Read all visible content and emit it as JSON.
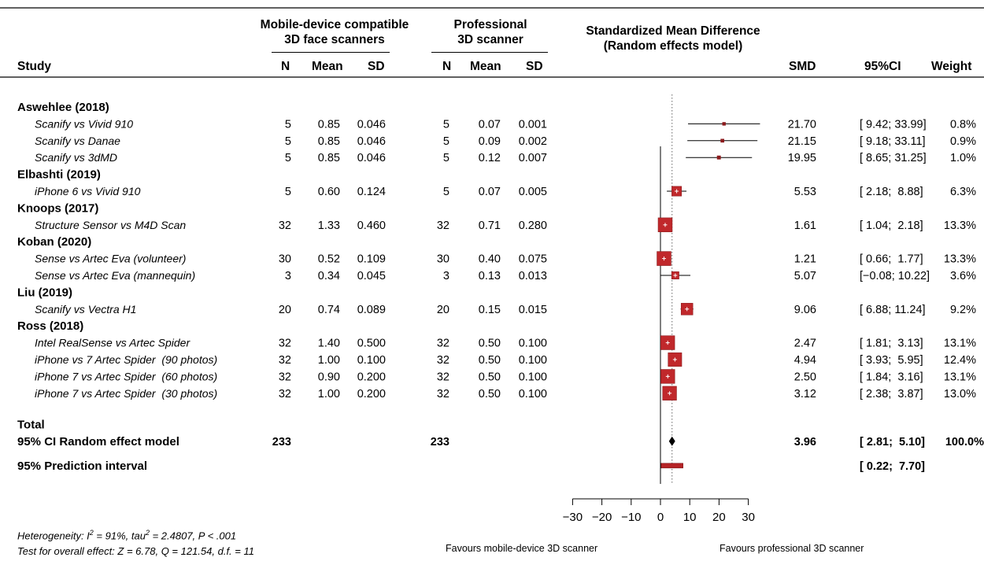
{
  "header": {
    "group1_line1": "Mobile-device compatible",
    "group1_line2": "3D face scanners",
    "group2_line1": "Professional",
    "group2_line2": "3D scanner",
    "smd_title_line1": "Standardized Mean Difference",
    "smd_title_line2": "(Random effects model)"
  },
  "columns": {
    "study": "Study",
    "n1": "N",
    "mean1": "Mean",
    "sd1": "SD",
    "n2": "N",
    "mean2": "Mean",
    "sd2": "SD",
    "smd": "SMD",
    "ci": "95%CI",
    "weight": "Weight"
  },
  "chart_data": {
    "type": "forest",
    "xlim": [
      -30,
      30
    ],
    "xticks": [
      "-30",
      "-20",
      "-10",
      "0",
      "10",
      "20",
      "30"
    ],
    "reference_line": 0,
    "pooled_line": 3.96,
    "rows": [
      {
        "kind": "group",
        "label": "Aswehlee (2018)"
      },
      {
        "kind": "study",
        "label": "Scanify vs Vivid 910",
        "n1": "5",
        "mean1": "0.85",
        "sd1": "0.046",
        "n2": "5",
        "mean2": "0.07",
        "sd2": "0.001",
        "smd": 21.7,
        "lo": 9.42,
        "hi": 33.99,
        "smd_text": "21.70",
        "ci_text": "[ 9.42; 33.99]",
        "weight_text": "0.8%",
        "weight": 0.8
      },
      {
        "kind": "study",
        "label": "Scanify vs Danae",
        "n1": "5",
        "mean1": "0.85",
        "sd1": "0.046",
        "n2": "5",
        "mean2": "0.09",
        "sd2": "0.002",
        "smd": 21.15,
        "lo": 9.18,
        "hi": 33.11,
        "smd_text": "21.15",
        "ci_text": "[ 9.18; 33.11]",
        "weight_text": "0.9%",
        "weight": 0.9
      },
      {
        "kind": "study",
        "label": "Scanify vs 3dMD",
        "n1": "5",
        "mean1": "0.85",
        "sd1": "0.046",
        "n2": "5",
        "mean2": "0.12",
        "sd2": "0.007",
        "smd": 19.95,
        "lo": 8.65,
        "hi": 31.25,
        "smd_text": "19.95",
        "ci_text": "[ 8.65; 31.25]",
        "weight_text": "1.0%",
        "weight": 1.0
      },
      {
        "kind": "group",
        "label": "Elbashti (2019)"
      },
      {
        "kind": "study",
        "label": "iPhone 6 vs Vivid 910",
        "n1": "5",
        "mean1": "0.60",
        "sd1": "0.124",
        "n2": "5",
        "mean2": "0.07",
        "sd2": "0.005",
        "smd": 5.53,
        "lo": 2.18,
        "hi": 8.88,
        "smd_text": "5.53",
        "ci_text": "[ 2.18;  8.88]",
        "weight_text": "6.3%",
        "weight": 6.3
      },
      {
        "kind": "group",
        "label": "Knoops (2017)"
      },
      {
        "kind": "study",
        "label": "Structure Sensor vs M4D Scan",
        "n1": "32",
        "mean1": "1.33",
        "sd1": "0.460",
        "n2": "32",
        "mean2": "0.71",
        "sd2": "0.280",
        "smd": 1.61,
        "lo": 1.04,
        "hi": 2.18,
        "smd_text": "1.61",
        "ci_text": "[ 1.04;  2.18]",
        "weight_text": "13.3%",
        "weight": 13.3
      },
      {
        "kind": "group",
        "label": "Koban (2020)"
      },
      {
        "kind": "study",
        "label": "Sense vs Artec Eva (volunteer)",
        "n1": "30",
        "mean1": "0.52",
        "sd1": "0.109",
        "n2": "30",
        "mean2": "0.40",
        "sd2": "0.075",
        "smd": 1.21,
        "lo": 0.66,
        "hi": 1.77,
        "smd_text": "1.21",
        "ci_text": "[ 0.66;  1.77]",
        "weight_text": "13.3%",
        "weight": 13.3
      },
      {
        "kind": "study",
        "label": "Sense vs Artec Eva (mannequin)",
        "n1": "3",
        "mean1": "0.34",
        "sd1": "0.045",
        "n2": "3",
        "mean2": "0.13",
        "sd2": "0.013",
        "smd": 5.07,
        "lo": -0.08,
        "hi": 10.22,
        "smd_text": "5.07",
        "ci_text": "[−0.08; 10.22]",
        "weight_text": "3.6%",
        "weight": 3.6
      },
      {
        "kind": "group",
        "label": "Liu (2019)"
      },
      {
        "kind": "study",
        "label": "Scanify vs Vectra H1",
        "n1": "20",
        "mean1": "0.74",
        "sd1": "0.089",
        "n2": "20",
        "mean2": "0.15",
        "sd2": "0.015",
        "smd": 9.06,
        "lo": 6.88,
        "hi": 11.24,
        "smd_text": "9.06",
        "ci_text": "[ 6.88; 11.24]",
        "weight_text": "9.2%",
        "weight": 9.2
      },
      {
        "kind": "group",
        "label": "Ross (2018)"
      },
      {
        "kind": "study",
        "label": "Intel RealSense vs Artec Spider",
        "n1": "32",
        "mean1": "1.40",
        "sd1": "0.500",
        "n2": "32",
        "mean2": "0.50",
        "sd2": "0.100",
        "smd": 2.47,
        "lo": 1.81,
        "hi": 3.13,
        "smd_text": "2.47",
        "ci_text": "[ 1.81;  3.13]",
        "weight_text": "13.1%",
        "weight": 13.1
      },
      {
        "kind": "study",
        "label": "iPhone vs 7 Artec Spider  (90 photos)",
        "n1": "32",
        "mean1": "1.00",
        "sd1": "0.100",
        "n2": "32",
        "mean2": "0.50",
        "sd2": "0.100",
        "smd": 4.94,
        "lo": 3.93,
        "hi": 5.95,
        "smd_text": "4.94",
        "ci_text": "[ 3.93;  5.95]",
        "weight_text": "12.4%",
        "weight": 12.4
      },
      {
        "kind": "study",
        "label": "iPhone 7 vs Artec Spider  (60 photos)",
        "n1": "32",
        "mean1": "0.90",
        "sd1": "0.200",
        "n2": "32",
        "mean2": "0.50",
        "sd2": "0.100",
        "smd": 2.5,
        "lo": 1.84,
        "hi": 3.16,
        "smd_text": "2.50",
        "ci_text": "[ 1.84;  3.16]",
        "weight_text": "13.1%",
        "weight": 13.1
      },
      {
        "kind": "study",
        "label": "iPhone 7 vs Artec Spider  (30 photos)",
        "n1": "32",
        "mean1": "1.00",
        "sd1": "0.200",
        "n2": "32",
        "mean2": "0.50",
        "sd2": "0.100",
        "smd": 3.12,
        "lo": 2.38,
        "hi": 3.87,
        "smd_text": "3.12",
        "ci_text": "[ 2.38;  3.87]",
        "weight_text": "13.0%",
        "weight": 13.0
      },
      {
        "kind": "spacer"
      },
      {
        "kind": "group",
        "label": "Total"
      },
      {
        "kind": "pooled",
        "label": "95% CI Random effect model",
        "n1": "233",
        "n2": "233",
        "smd": 3.96,
        "lo": 2.81,
        "hi": 5.1,
        "smd_text": "3.96",
        "ci_text": "[ 2.81;  5.10]",
        "weight_text": "100.0%"
      },
      {
        "kind": "prediction",
        "label": "95% Prediction interval",
        "lo": 0.22,
        "hi": 7.7,
        "ci_text": "[ 0.22;  7.70]"
      }
    ],
    "colors": {
      "square": "#c0282b",
      "square_border": "#8b1a1c",
      "diamond": "#000000",
      "prediction": "#b52326"
    }
  },
  "footer": {
    "heterogeneity_prefix": "Heterogeneity: ",
    "heterogeneity_i": "I",
    "heterogeneity_sup2": "2",
    "heterogeneity_mid": " = 91%, tau",
    "heterogeneity_sup2b": "2",
    "heterogeneity_rest": " = 2.4807, ",
    "heterogeneity_p": "P",
    "heterogeneity_end": " < .001",
    "overall_effect": "Test for overall effect: Z = 6.78, Q = 121.54, d.f. = 11",
    "favours_left": "Favours mobile-device 3D scanner",
    "favours_right": "Favours professional 3D scanner"
  }
}
